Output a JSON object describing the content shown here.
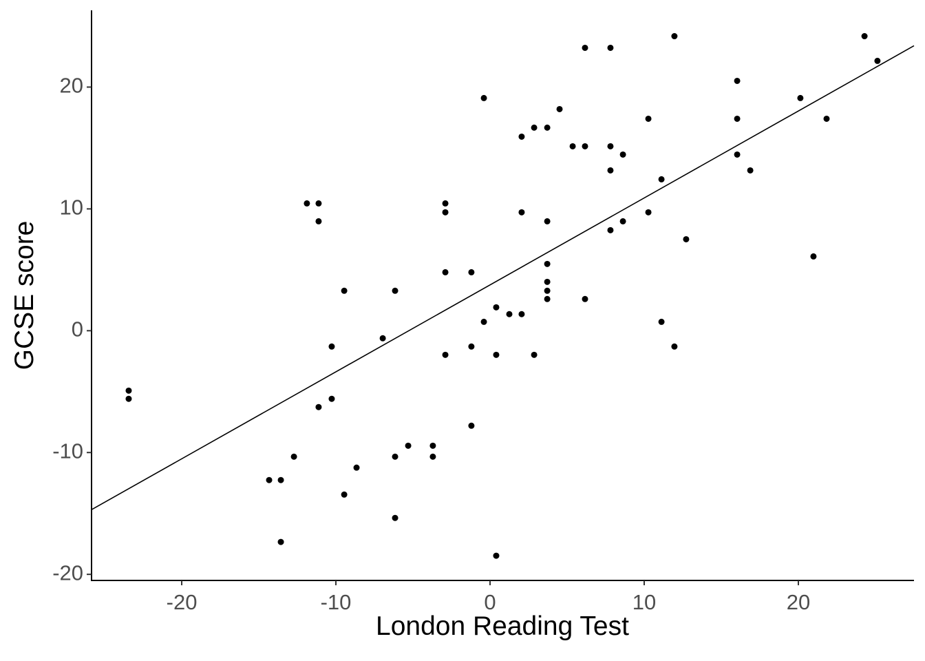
{
  "chart_data": {
    "type": "scatter",
    "x_label": "London Reading Test",
    "y_label": "GCSE score",
    "xlim": [
      -25.85,
      27.5
    ],
    "ylim": [
      -20.5,
      26.3
    ],
    "xticks": [
      -20,
      -10,
      0,
      10,
      20
    ],
    "yticks": [
      -20,
      -10,
      0,
      10,
      20
    ],
    "color": "#000000",
    "x": [
      -23.44,
      -23.44,
      -11.88,
      -11.12,
      -11.12,
      -14.33,
      -13.57,
      -13.57,
      -12.72,
      -11.12,
      -10.27,
      -10.27,
      -9.46,
      -9.46,
      -8.66,
      -6.96,
      -6.16,
      -6.16,
      -6.16,
      -5.31,
      -3.71,
      -3.71,
      -2.9,
      -2.9,
      -2.9,
      -2.9,
      -1.21,
      -1.21,
      -1.21,
      -0.4,
      -0.4,
      0.4,
      0.4,
      0.4,
      1.25,
      2.05,
      2.05,
      2.05,
      2.86,
      2.86,
      3.71,
      3.71,
      3.71,
      3.71,
      3.71,
      3.71,
      4.51,
      5.36,
      6.16,
      6.16,
      6.16,
      7.81,
      7.81,
      7.81,
      7.81,
      8.62,
      8.62,
      10.27,
      10.27,
      11.12,
      11.12,
      11.96,
      11.96,
      12.72,
      16.03,
      16.03,
      16.03,
      16.88,
      20.13,
      20.98,
      21.83,
      24.29,
      25.13
    ],
    "y": [
      -4.92,
      -5.59,
      10.45,
      10.45,
      8.98,
      -12.26,
      -12.26,
      -17.34,
      -10.34,
      -6.27,
      -1.3,
      -5.59,
      3.28,
      -13.45,
      -11.24,
      -0.62,
      3.28,
      -10.34,
      -15.37,
      -9.44,
      -9.44,
      -10.34,
      10.45,
      9.72,
      4.8,
      -1.98,
      4.8,
      -1.3,
      -7.8,
      19.1,
      0.73,
      1.92,
      -1.98,
      -18.47,
      1.36,
      1.36,
      15.93,
      9.72,
      16.67,
      -1.98,
      16.67,
      8.98,
      5.48,
      4.01,
      3.28,
      2.6,
      18.19,
      15.14,
      23.22,
      15.14,
      2.6,
      23.22,
      15.14,
      13.16,
      8.25,
      14.46,
      8.98,
      17.4,
      9.72,
      12.43,
      0.73,
      24.18,
      -1.3,
      7.51,
      20.51,
      17.4,
      14.46,
      13.16,
      19.1,
      6.1,
      17.4,
      24.18,
      22.15
    ],
    "fit": {
      "x": [
        -25.85,
        27.5
      ],
      "y": [
        -14.69,
        23.39
      ],
      "color": "#000000"
    }
  }
}
